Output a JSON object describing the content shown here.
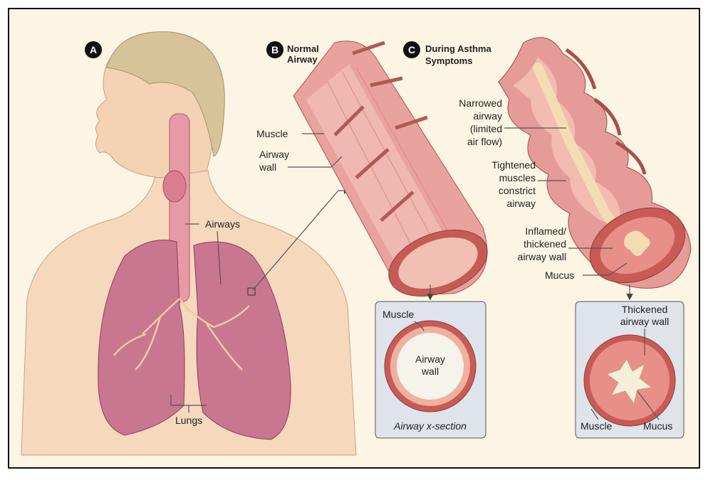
{
  "panel_a": {
    "letter": "A",
    "airways": "Airways",
    "lungs": "Lungs"
  },
  "panel_b": {
    "letter": "B",
    "title": [
      "Normal",
      "Airway"
    ],
    "muscle": "Muscle",
    "airway_wall": [
      "Airway",
      "wall"
    ],
    "cross_section": {
      "muscle": "Muscle",
      "airway_wall": [
        "Airway",
        "wall"
      ],
      "caption": "Airway x-section"
    }
  },
  "panel_c": {
    "letter": "C",
    "title": [
      "During Asthma",
      "Symptoms"
    ],
    "narrowed_airway": [
      "Narrowed",
      "airway",
      "(limited",
      "air flow)"
    ],
    "tightened_muscles": [
      "Tightened",
      "muscles",
      "constrict",
      "airway"
    ],
    "inflamed_wall": [
      "Inflamed/",
      "thickened",
      "airway wall"
    ],
    "mucus": "Mucus",
    "cross_section": {
      "thickened_wall": [
        "Thickened",
        "airway wall"
      ],
      "muscle": "Muscle",
      "mucus": "Mucus"
    }
  }
}
